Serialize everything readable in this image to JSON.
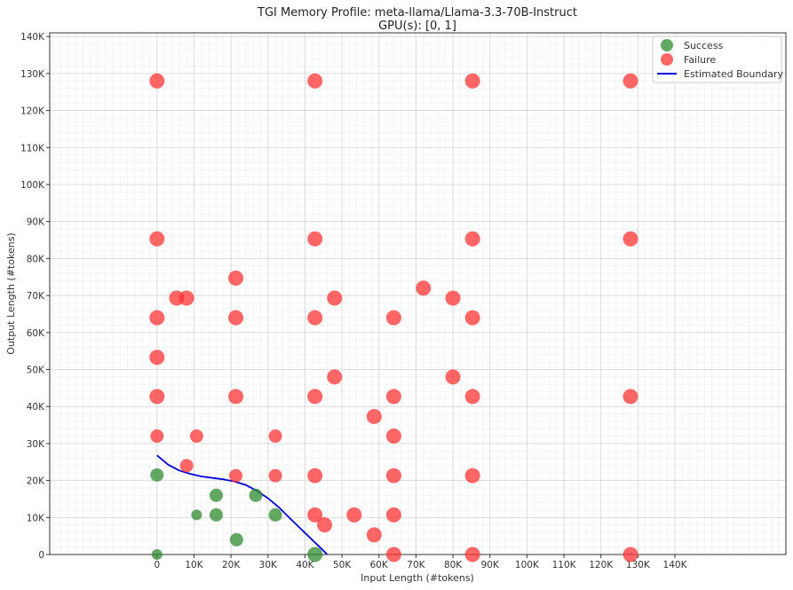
{
  "chart_data": {
    "type": "scatter",
    "title": "TGI Memory Profile: meta-llama/Llama-3.3-70B-Instruct",
    "subtitle": "GPU(s): [0, 1]",
    "xlabel": "Input Length (#tokens)",
    "ylabel": "Output Length (#tokens)",
    "xlim": [
      -29000,
      170000
    ],
    "ylim": [
      0,
      141000
    ],
    "x_ticks": [
      0,
      10000,
      20000,
      30000,
      40000,
      50000,
      60000,
      70000,
      80000,
      90000,
      100000,
      110000,
      120000,
      130000,
      140000
    ],
    "x_tick_labels": [
      "0",
      "10K",
      "20K",
      "30K",
      "40K",
      "50K",
      "60K",
      "70K",
      "80K",
      "90K",
      "100K",
      "110K",
      "120K",
      "130K",
      "140K"
    ],
    "y_ticks": [
      0,
      10000,
      20000,
      30000,
      40000,
      50000,
      60000,
      70000,
      80000,
      90000,
      100000,
      110000,
      120000,
      130000,
      140000
    ],
    "y_tick_labels": [
      "0",
      "10K",
      "20K",
      "30K",
      "40K",
      "50K",
      "60K",
      "70K",
      "80K",
      "90K",
      "100K",
      "110K",
      "120K",
      "130K",
      "140K"
    ],
    "grid": true,
    "legend_position": "top-right",
    "colors": {
      "success": "#2e8b2e",
      "failure": "#ff3333",
      "boundary": "#0000dd"
    },
    "series": [
      {
        "name": "Success",
        "points": [
          [
            0,
            0
          ],
          [
            0,
            21500
          ],
          [
            10700,
            10700
          ],
          [
            16000,
            10700
          ],
          [
            16000,
            16000
          ],
          [
            21500,
            4000
          ],
          [
            26700,
            16000
          ],
          [
            32000,
            10700
          ],
          [
            42700,
            0
          ]
        ]
      },
      {
        "name": "Failure",
        "points": [
          [
            0,
            128000
          ],
          [
            0,
            85300
          ],
          [
            0,
            64000
          ],
          [
            0,
            53300
          ],
          [
            0,
            42700
          ],
          [
            0,
            32000
          ],
          [
            5300,
            69300
          ],
          [
            8000,
            69300
          ],
          [
            8000,
            24000
          ],
          [
            10700,
            32000
          ],
          [
            21300,
            74700
          ],
          [
            21300,
            64000
          ],
          [
            21300,
            42700
          ],
          [
            21300,
            21300
          ],
          [
            32000,
            32000
          ],
          [
            32000,
            21300
          ],
          [
            42700,
            128000
          ],
          [
            42700,
            85300
          ],
          [
            42700,
            64000
          ],
          [
            42700,
            42700
          ],
          [
            42700,
            21300
          ],
          [
            42700,
            10700
          ],
          [
            45300,
            8000
          ],
          [
            48000,
            69300
          ],
          [
            48000,
            48000
          ],
          [
            53300,
            10700
          ],
          [
            58700,
            5300
          ],
          [
            58700,
            37300
          ],
          [
            64000,
            64000
          ],
          [
            64000,
            42700
          ],
          [
            64000,
            32000
          ],
          [
            64000,
            21300
          ],
          [
            64000,
            10700
          ],
          [
            64000,
            0
          ],
          [
            72000,
            72000
          ],
          [
            80000,
            69300
          ],
          [
            80000,
            48000
          ],
          [
            85300,
            128000
          ],
          [
            85300,
            85300
          ],
          [
            85300,
            64000
          ],
          [
            85300,
            42700
          ],
          [
            85300,
            21300
          ],
          [
            85300,
            0
          ],
          [
            128000,
            128000
          ],
          [
            128000,
            85300
          ],
          [
            128000,
            42700
          ],
          [
            128000,
            0
          ]
        ]
      },
      {
        "name": "Estimated Boundary",
        "line": [
          [
            0,
            26800
          ],
          [
            3000,
            24300
          ],
          [
            6000,
            22700
          ],
          [
            9000,
            21800
          ],
          [
            12000,
            21100
          ],
          [
            15000,
            20700
          ],
          [
            18000,
            20300
          ],
          [
            21000,
            19700
          ],
          [
            24000,
            18800
          ],
          [
            27000,
            17200
          ],
          [
            30000,
            15200
          ],
          [
            33000,
            12700
          ],
          [
            36000,
            9700
          ],
          [
            39000,
            6800
          ],
          [
            42000,
            3900
          ],
          [
            44500,
            1500
          ],
          [
            46000,
            0
          ]
        ]
      }
    ]
  }
}
